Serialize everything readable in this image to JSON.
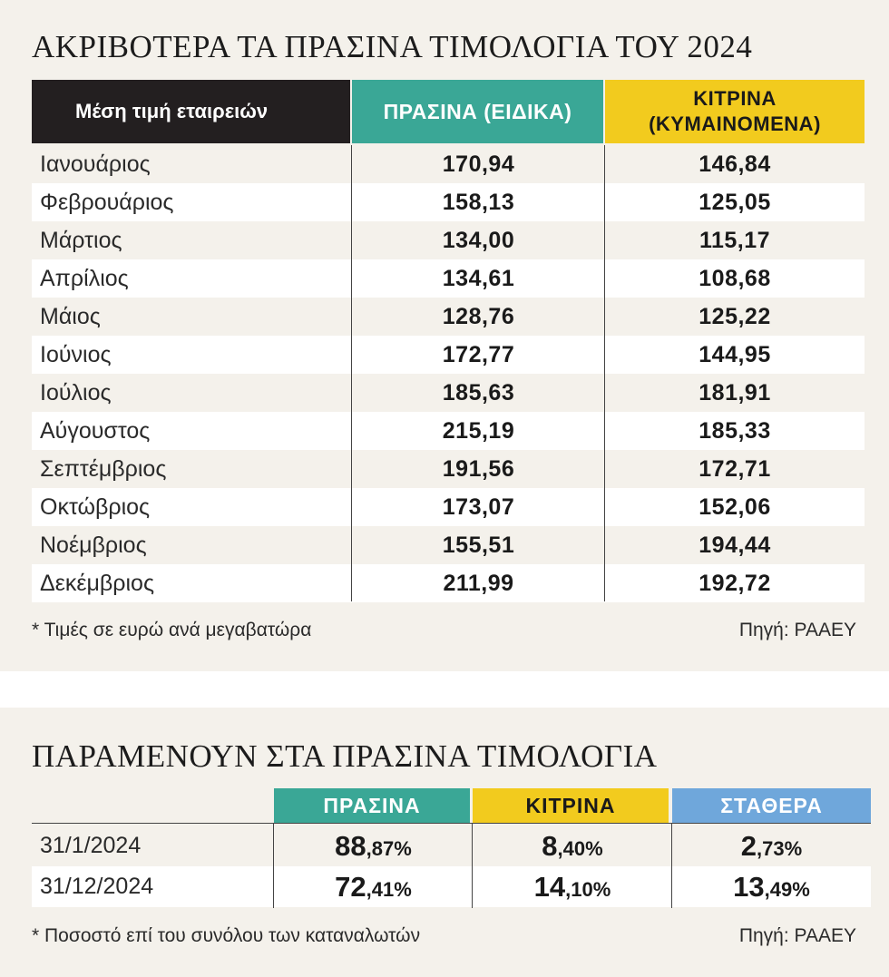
{
  "chart_data": [
    {
      "type": "table",
      "title": "ΑΚΡΙΒΟΤΕΡΑ ΤΑ ΠΡΑΣΙΝΑ ΤΙΜΟΛΟΓΙΑ ΤΟΥ 2024",
      "columns": [
        "Μέση τιμή εταιρειών",
        "ΠΡΑΣΙΝΑ (ΕΙΔΙΚΑ)",
        "ΚΙΤΡΙΝΑ (ΚΥΜΑΙΝΟΜΕΝΑ)"
      ],
      "column_colors": [
        "#231f20",
        "#3aa796",
        "#f2cb1e"
      ],
      "rows": [
        {
          "label": "Ιανουάριος",
          "green": "170,94",
          "yellow": "146,84"
        },
        {
          "label": "Φεβρουάριος",
          "green": "158,13",
          "yellow": "125,05"
        },
        {
          "label": "Μάρτιος",
          "green": "134,00",
          "yellow": "115,17"
        },
        {
          "label": "Απρίλιος",
          "green": "134,61",
          "yellow": "108,68"
        },
        {
          "label": "Μάιος",
          "green": "128,76",
          "yellow": "125,22"
        },
        {
          "label": "Ιούνιος",
          "green": "172,77",
          "yellow": "144,95"
        },
        {
          "label": "Ιούλιος",
          "green": "185,63",
          "yellow": "181,91"
        },
        {
          "label": "Αύγουστος",
          "green": "215,19",
          "yellow": "185,33"
        },
        {
          "label": "Σεπτέμβριος",
          "green": "191,56",
          "yellow": "172,71"
        },
        {
          "label": "Οκτώβριος",
          "green": "173,07",
          "yellow": "152,06"
        },
        {
          "label": "Νοέμβριος",
          "green": "155,51",
          "yellow": "194,44"
        },
        {
          "label": "Δεκέμβριος",
          "green": "211,99",
          "yellow": "192,72"
        }
      ],
      "note": "* Τιμές σε ευρώ ανά μεγαβατώρα",
      "source": "Πηγή: ΡΑΑΕΥ"
    },
    {
      "type": "table",
      "title": "ΠΑΡΑΜΕΝΟΥΝ ΣΤΑ ΠΡΑΣΙΝΑ ΤΙΜΟΛΟΓΙΑ",
      "columns": [
        "ΠΡΑΣΙΝΑ",
        "ΚΙΤΡΙΝΑ",
        "ΣΤΑΘΕΡΑ"
      ],
      "column_colors": [
        "#3aa796",
        "#f2cb1e",
        "#6fa7db"
      ],
      "rows": [
        {
          "label": "31/1/2024",
          "values": [
            {
              "int": "88",
              "dec": ",87%"
            },
            {
              "int": "8",
              "dec": ",40%"
            },
            {
              "int": "2",
              "dec": ",73%"
            }
          ]
        },
        {
          "label": "31/12/2024",
          "values": [
            {
              "int": "72",
              "dec": ",41%"
            },
            {
              "int": "14",
              "dec": ",10%"
            },
            {
              "int": "13",
              "dec": ",49%"
            }
          ]
        }
      ],
      "note": "* Ποσοστό επί του συνόλου των καταναλωτών",
      "source": "Πηγή: ΡΑΑΕΥ"
    }
  ]
}
